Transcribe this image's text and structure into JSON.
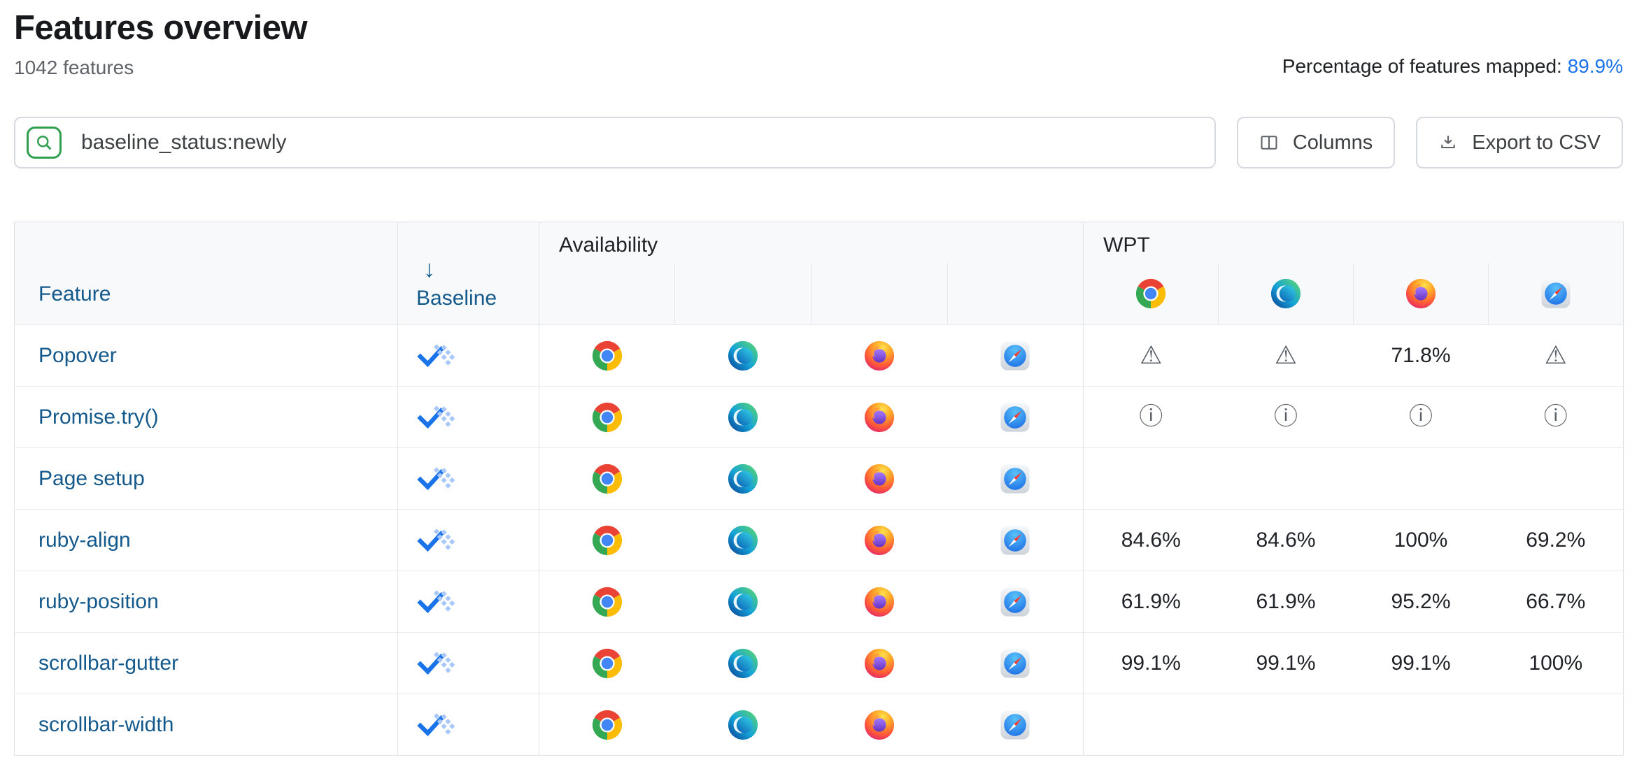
{
  "page": {
    "title": "Features overview",
    "subtitle": "1042 features",
    "mapped_label": "Percentage of features mapped:",
    "mapped_value": "89.9%"
  },
  "toolbar": {
    "search_value": "baseline_status:newly",
    "search_icon": "magnifier",
    "columns_label": "Columns",
    "columns_icon": "columns-layout",
    "export_label": "Export to CSV",
    "export_icon": "download"
  },
  "colors": {
    "link_blue": "#14598c",
    "bright_link_blue": "#1a73e8",
    "accent_green": "#2f9e4f",
    "baseline_check_blue": "#1a73e8",
    "baseline_dot_blue": "#a8c7fa"
  },
  "table": {
    "columns": {
      "feature": "Feature",
      "baseline": "Baseline",
      "availability": "Availability",
      "wpt": "WPT"
    },
    "sort_icon": "↓",
    "wpt_browsers": [
      "chrome",
      "edge",
      "firefox",
      "safari"
    ],
    "icons": {
      "warning": "⚠",
      "info": "ⓘ"
    },
    "rows": [
      {
        "feature": "Popover",
        "baseline": "newly",
        "availability": [
          "chrome",
          "edge",
          "firefox",
          "safari"
        ],
        "wpt": [
          "warning",
          "warning",
          "71.8%",
          "warning"
        ]
      },
      {
        "feature": "Promise.try()",
        "baseline": "newly",
        "availability": [
          "chrome",
          "edge",
          "firefox",
          "safari"
        ],
        "wpt": [
          "info",
          "info",
          "info",
          "info"
        ]
      },
      {
        "feature": "Page setup",
        "baseline": "newly",
        "availability": [
          "chrome",
          "edge",
          "firefox",
          "safari"
        ],
        "wpt": [
          "",
          "",
          "",
          ""
        ]
      },
      {
        "feature": "ruby-align",
        "baseline": "newly",
        "availability": [
          "chrome",
          "edge",
          "firefox",
          "safari"
        ],
        "wpt": [
          "84.6%",
          "84.6%",
          "100%",
          "69.2%"
        ]
      },
      {
        "feature": "ruby-position",
        "baseline": "newly",
        "availability": [
          "chrome",
          "edge",
          "firefox",
          "safari"
        ],
        "wpt": [
          "61.9%",
          "61.9%",
          "95.2%",
          "66.7%"
        ]
      },
      {
        "feature": "scrollbar-gutter",
        "baseline": "newly",
        "availability": [
          "chrome",
          "edge",
          "firefox",
          "safari"
        ],
        "wpt": [
          "99.1%",
          "99.1%",
          "99.1%",
          "100%"
        ]
      },
      {
        "feature": "scrollbar-width",
        "baseline": "newly",
        "availability": [
          "chrome",
          "edge",
          "firefox",
          "safari"
        ],
        "wpt": [
          "",
          "",
          "",
          ""
        ]
      }
    ]
  }
}
